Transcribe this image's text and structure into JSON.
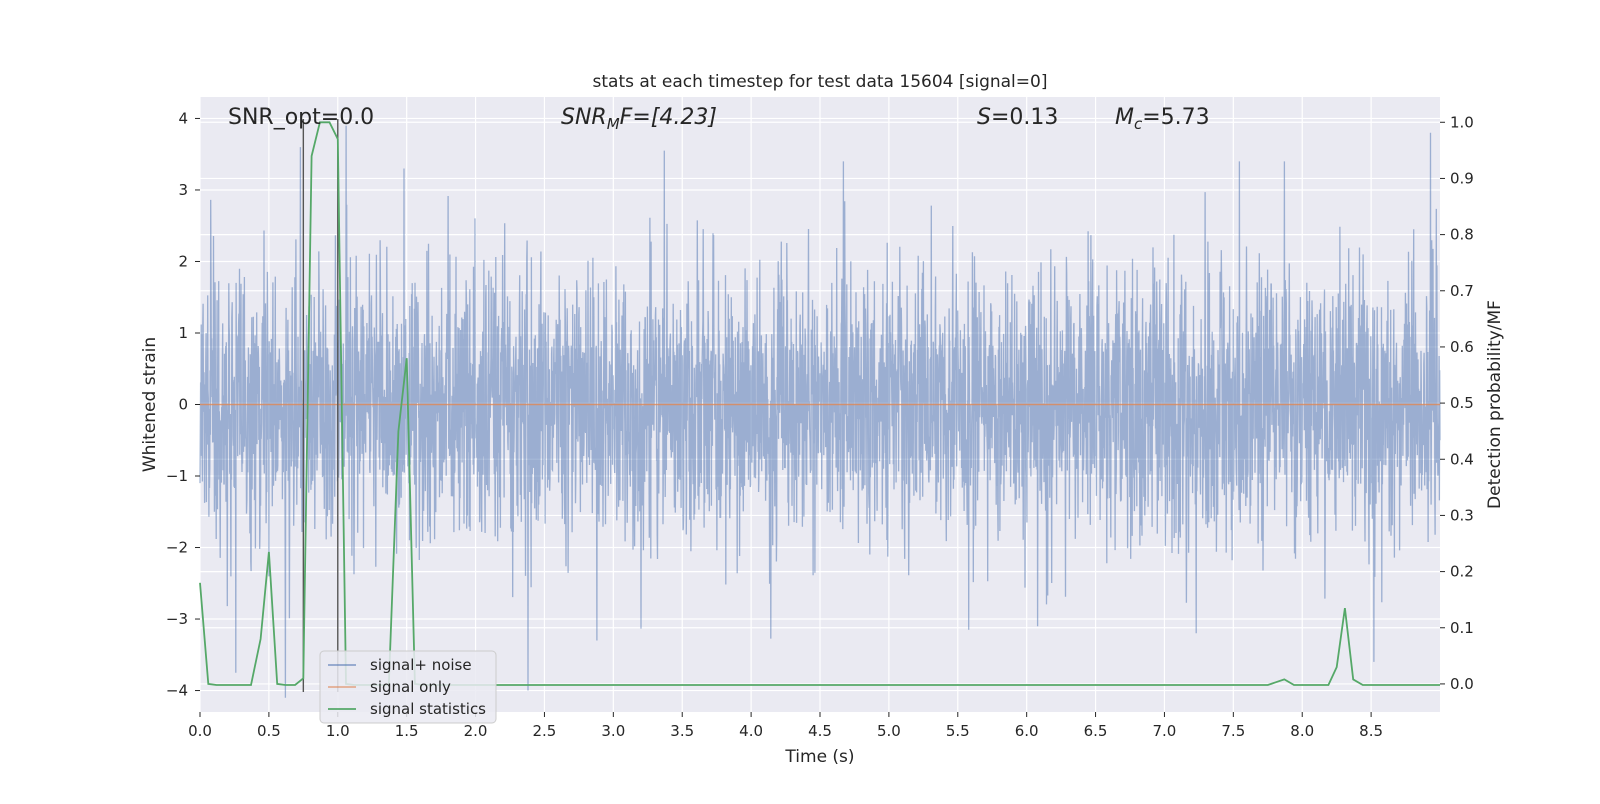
{
  "chart_data": {
    "type": "line",
    "title": "stats at each timestep for test data 15604 [signal=0]",
    "xlabel": "Time (s)",
    "ylabel": "Whitened strain",
    "y2label": "Detection probability/MF",
    "xlim": [
      0.0,
      9.0
    ],
    "ylim": [
      -4.3,
      4.3
    ],
    "y2lim": [
      -0.05,
      1.045
    ],
    "x_ticks": [
      "0.0",
      "0.5",
      "1.0",
      "1.5",
      "2.0",
      "2.5",
      "3.0",
      "3.5",
      "4.0",
      "4.5",
      "5.0",
      "5.5",
      "6.0",
      "6.5",
      "7.0",
      "7.5",
      "8.0",
      "8.5"
    ],
    "y_ticks": [
      "4",
      "3",
      "2",
      "1",
      "0",
      "−1",
      "−2",
      "−3",
      "−4"
    ],
    "y2_ticks": [
      "1.0",
      "0.9",
      "0.8",
      "0.7",
      "0.6",
      "0.5",
      "0.4",
      "0.3",
      "0.2",
      "0.1",
      "0.0"
    ],
    "grid": true,
    "legend_position": "lower-left",
    "annotations": {
      "snr_opt": "SNR_opt=0.0",
      "snr_mf_main": "SNR",
      "snr_mf_sub": "M",
      "snr_mf_rest": "F=[4.23]",
      "s_sym": "S",
      "s_val": "=0.13",
      "mc_sym": "M",
      "mc_sub": "c",
      "mc_val": "=5.73"
    },
    "vertical_markers_x": [
      0.75,
      1.0
    ],
    "series": [
      {
        "name": "signal+ noise",
        "color": "#4c72b0",
        "axis": "left",
        "style": "noise",
        "sample_rate": 450,
        "duration": 9.0,
        "approx_std": 0.95,
        "spikes": [
          {
            "x": 0.26,
            "y": -3.75
          },
          {
            "x": 0.62,
            "y": -4.1
          },
          {
            "x": 0.73,
            "y": 3.6
          },
          {
            "x": 1.06,
            "y": 3.9
          },
          {
            "x": 1.48,
            "y": 3.3
          },
          {
            "x": 2.38,
            "y": -4.0
          },
          {
            "x": 2.88,
            "y": -3.3
          },
          {
            "x": 3.37,
            "y": 3.55
          },
          {
            "x": 4.67,
            "y": 3.4
          },
          {
            "x": 5.58,
            "y": -3.15
          },
          {
            "x": 6.08,
            "y": -3.1
          },
          {
            "x": 7.23,
            "y": -3.2
          },
          {
            "x": 7.87,
            "y": 3.4
          },
          {
            "x": 8.52,
            "y": -3.6
          },
          {
            "x": 8.93,
            "y": 3.8
          }
        ]
      },
      {
        "name": "signal only",
        "color": "#dd8452",
        "axis": "left",
        "x": [
          0.0,
          9.0
        ],
        "y": [
          0.0,
          0.0
        ]
      },
      {
        "name": "signal statistics",
        "color": "#55a868",
        "axis": "right",
        "x": [
          0.0,
          0.06,
          0.12,
          0.25,
          0.37,
          0.44,
          0.5,
          0.56,
          0.62,
          0.69,
          0.75,
          0.81,
          0.87,
          0.94,
          1.0,
          1.06,
          1.12,
          1.19,
          1.25,
          1.31,
          1.37,
          1.44,
          1.5,
          1.56,
          1.62,
          1.69,
          2.0,
          3.0,
          4.0,
          5.0,
          6.0,
          7.0,
          7.75,
          7.81,
          7.87,
          7.94,
          8.0,
          8.19,
          8.25,
          8.31,
          8.37,
          8.44,
          8.5,
          9.0
        ],
        "y": [
          0.18,
          0.0,
          -0.002,
          -0.002,
          -0.002,
          0.08,
          0.235,
          0.0,
          -0.002,
          -0.002,
          0.01,
          0.94,
          1.0,
          1.0,
          0.97,
          0.0,
          -0.002,
          -0.002,
          -0.002,
          -0.002,
          -0.002,
          0.45,
          0.58,
          0.0,
          -0.002,
          -0.002,
          -0.002,
          -0.002,
          -0.002,
          -0.002,
          -0.002,
          -0.002,
          -0.002,
          0.003,
          0.008,
          -0.002,
          -0.002,
          -0.002,
          0.03,
          0.135,
          0.008,
          -0.002,
          -0.002,
          -0.002
        ]
      }
    ]
  }
}
